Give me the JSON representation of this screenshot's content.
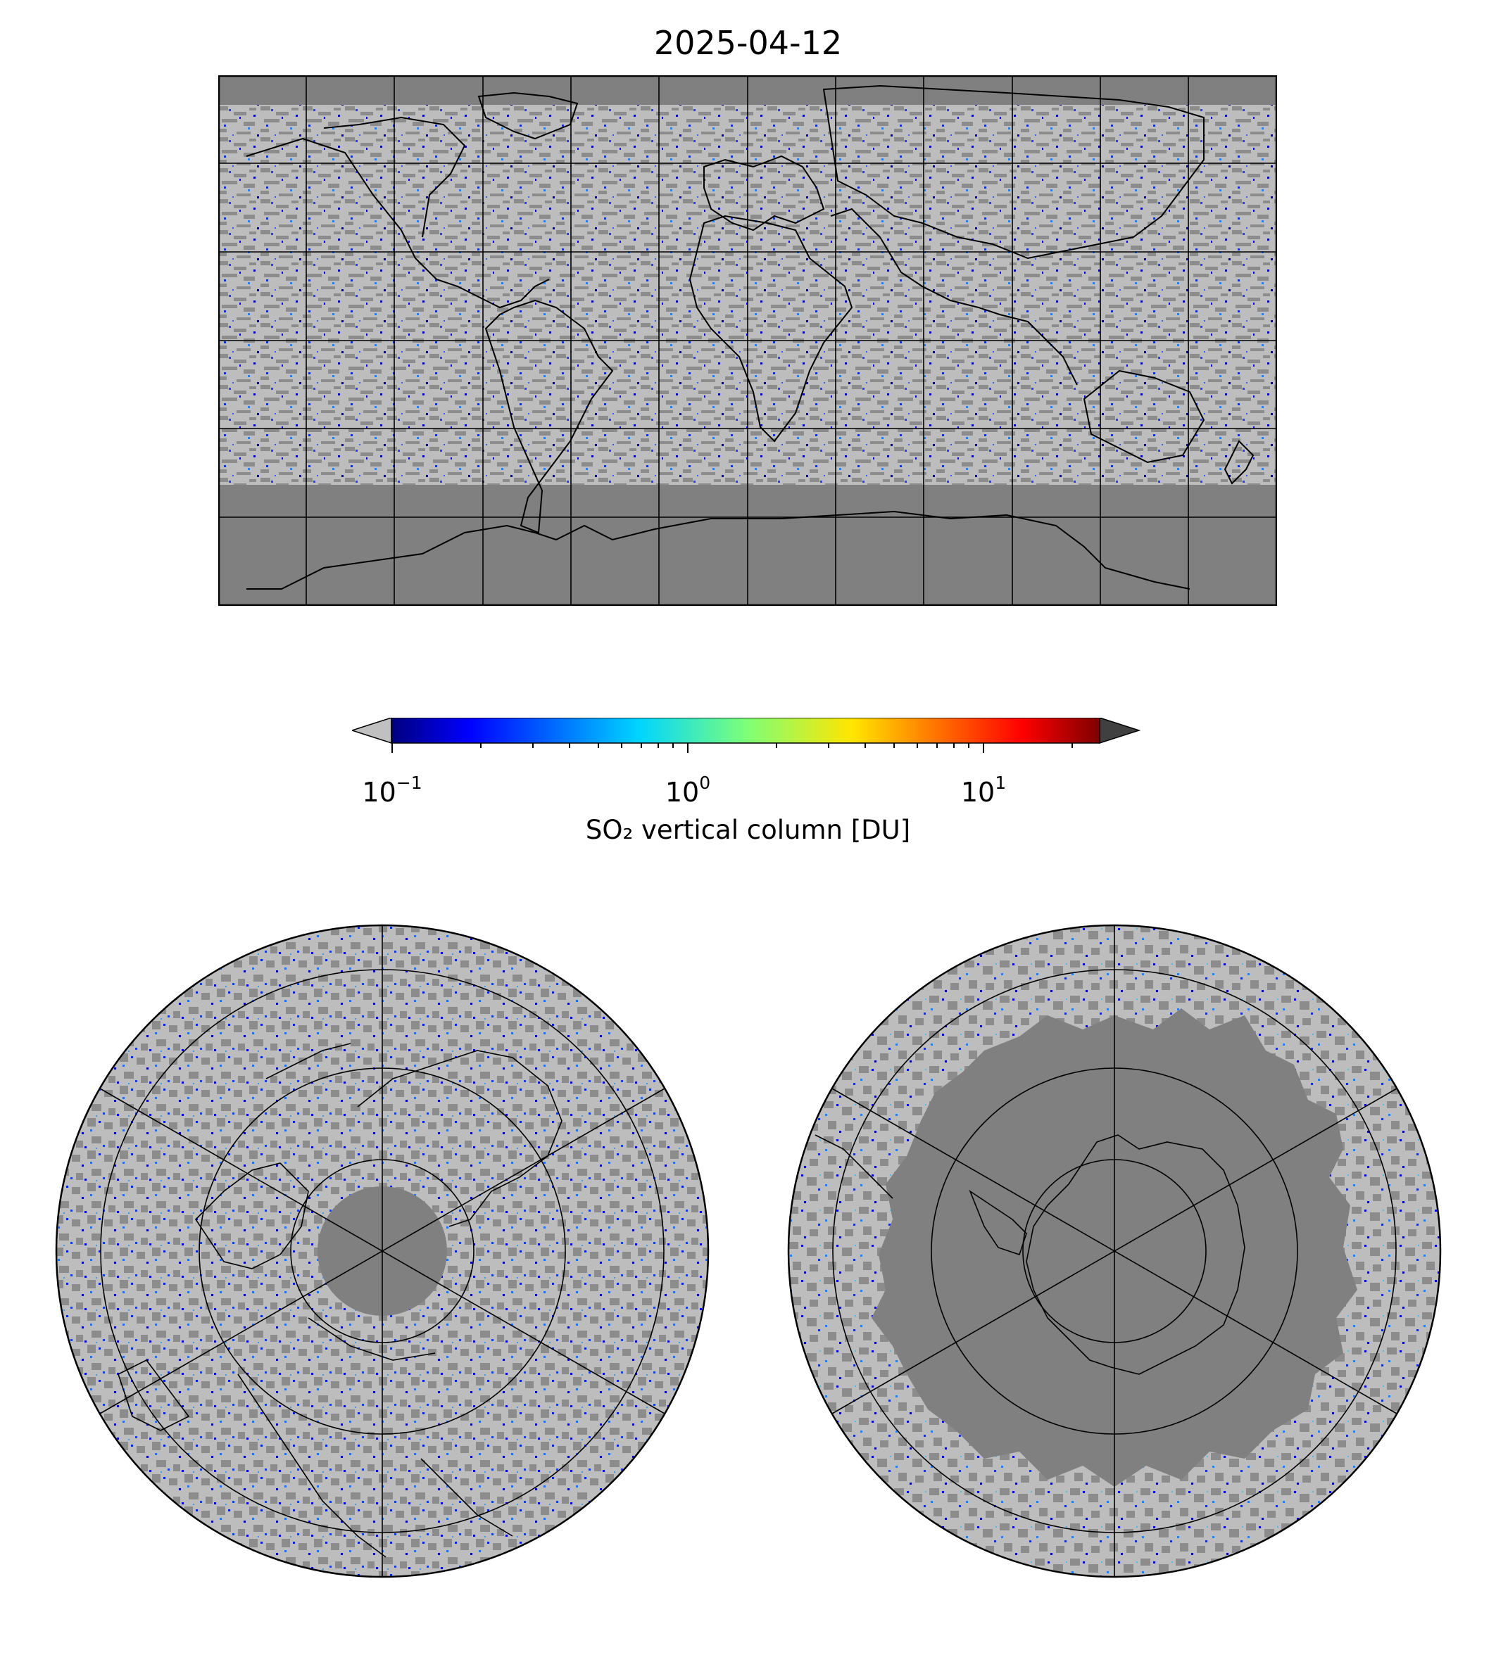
{
  "title": "2025-04-12",
  "colorbar": {
    "label": "SO₂ vertical column [DU]",
    "scale": "log",
    "range": [
      0.1,
      25
    ],
    "ticks": [
      {
        "base": "10",
        "exp": "−1",
        "value": 0.1
      },
      {
        "base": "10",
        "exp": "0",
        "value": 1
      },
      {
        "base": "10",
        "exp": "1",
        "value": 10
      }
    ],
    "colormap": [
      "#00007f",
      "#0000ff",
      "#007fff",
      "#00e5f7",
      "#4dffaa",
      "#b0ff47",
      "#ffe600",
      "#ff8000",
      "#ff1a00",
      "#7f0000"
    ],
    "under_color": "#c0c0c0",
    "over_color": "#404040",
    "extend": "both"
  },
  "maps": {
    "world": {
      "projection": "equirectangular",
      "no_data_color": "#808080",
      "gridline_spacing_deg": 30
    },
    "north": {
      "projection": "north-polar-stereographic"
    },
    "south": {
      "projection": "south-polar-stereographic"
    }
  },
  "colors": {
    "no_data": "#808080",
    "below_range": "#c0c0c0",
    "coastline": "#000000"
  }
}
